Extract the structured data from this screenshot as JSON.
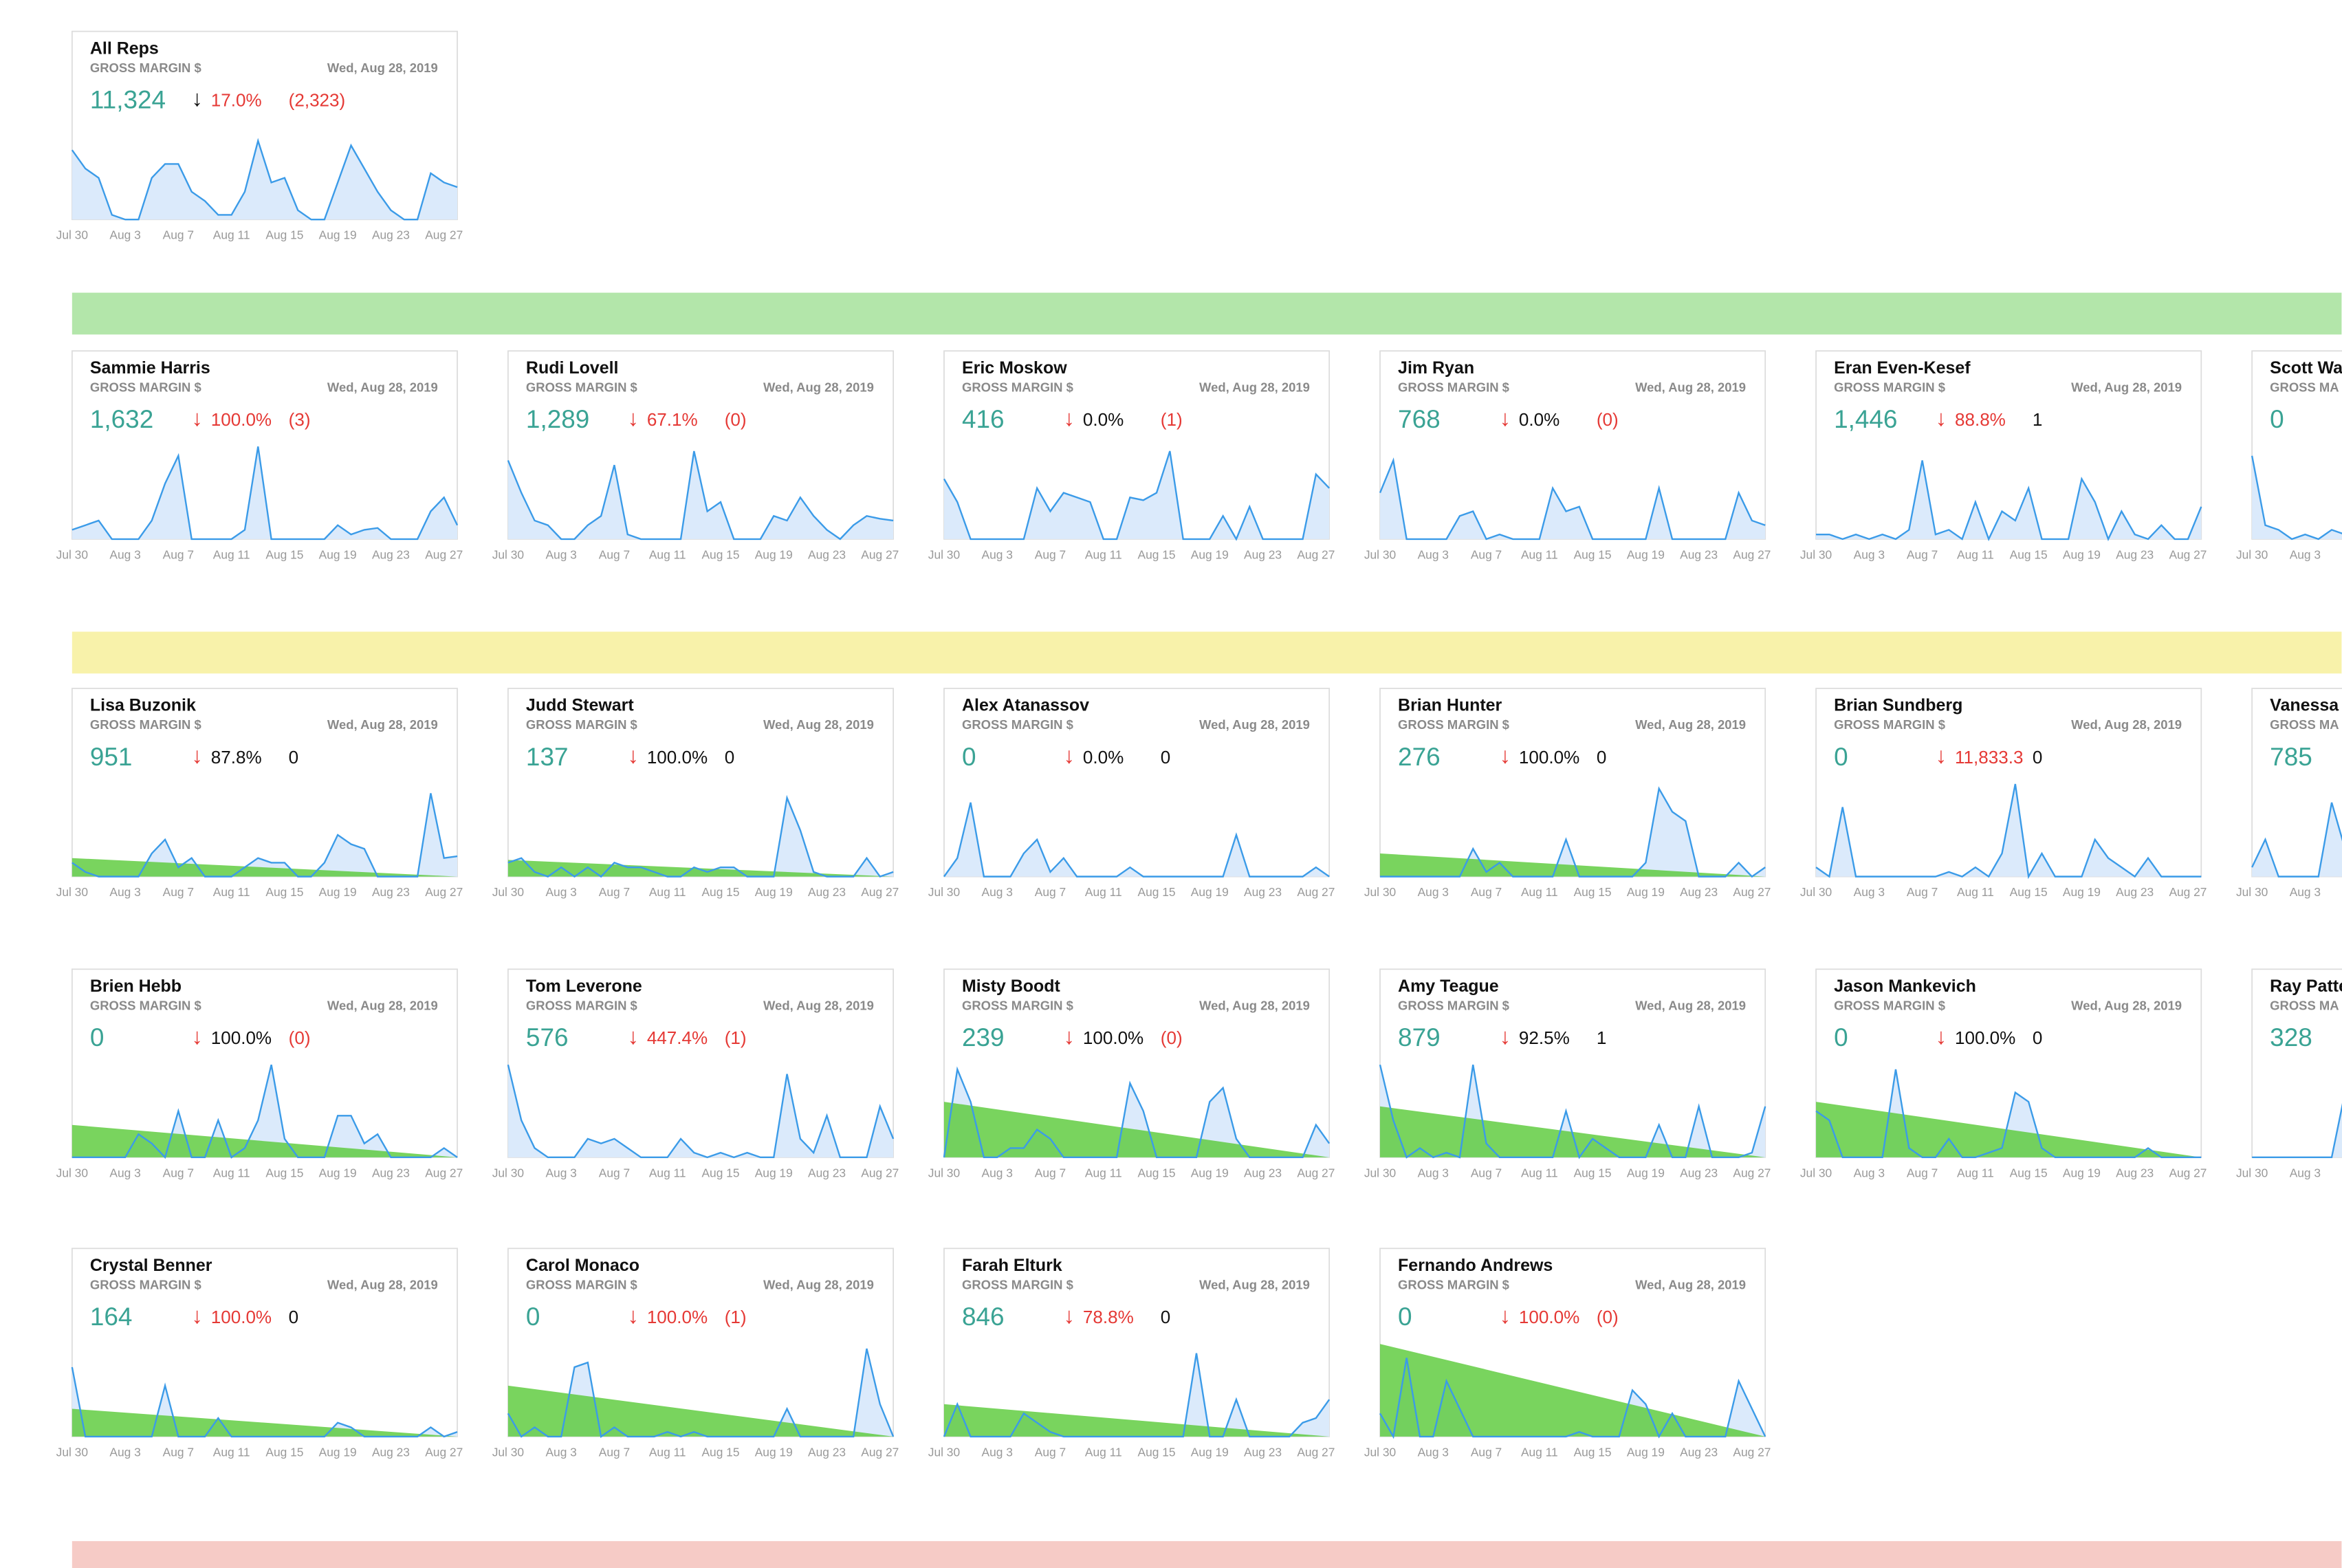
{
  "dates": [
    "Jul 30",
    "Aug 3",
    "Aug 7",
    "Aug 11",
    "Aug 15",
    "Aug 19",
    "Aug 23",
    "Aug 27"
  ],
  "ylim": [
    0,
    100
  ],
  "rows": [
    [
      {
        "name": "All Reps",
        "metric": "GROSS MARGIN $",
        "date": "Wed, Aug 28, 2019",
        "value": "11,324",
        "arrow": "↓",
        "arrow_color": "#111111",
        "pct": "17.0%",
        "pct_color": "#e53935",
        "delta": "(2,323)",
        "delta_color": "#e53935",
        "series": [
          75,
          55,
          45,
          5,
          0,
          0,
          45,
          60,
          60,
          30,
          20,
          5,
          5,
          30,
          85,
          40,
          45,
          10,
          0,
          0,
          40,
          80,
          55,
          30,
          10,
          0,
          0,
          50,
          40,
          35
        ]
      }
    ],
    [
      {
        "name": "Sammie Harris",
        "metric": "GROSS MARGIN $",
        "date": "Wed, Aug 28, 2019",
        "value": "1,632",
        "arrow": "↓",
        "pct": "100.0%",
        "pct_color": "#e53935",
        "delta": "(3)",
        "delta_color": "#e53935",
        "series": [
          10,
          15,
          20,
          0,
          0,
          0,
          20,
          60,
          90,
          0,
          0,
          0,
          0,
          10,
          100,
          0,
          0,
          0,
          0,
          0,
          15,
          5,
          10,
          12,
          0,
          0,
          0,
          30,
          45,
          15
        ]
      },
      {
        "name": "Rudi Lovell",
        "metric": "GROSS MARGIN $",
        "date": "Wed, Aug 28, 2019",
        "value": "1,289",
        "arrow": "↓",
        "pct": "67.1%",
        "pct_color": "#e53935",
        "delta": "(0)",
        "delta_color": "#e53935",
        "series": [
          85,
          50,
          20,
          15,
          0,
          0,
          15,
          25,
          80,
          5,
          0,
          0,
          0,
          0,
          95,
          30,
          40,
          0,
          0,
          0,
          25,
          20,
          45,
          25,
          10,
          0,
          15,
          25,
          22,
          20
        ]
      },
      {
        "name": "Eric Moskow",
        "metric": "GROSS MARGIN $",
        "date": "Wed, Aug 28, 2019",
        "value": "416",
        "arrow": "↓",
        "pct": "0.0%",
        "pct_color": "#111111",
        "delta": "(1)",
        "delta_color": "#e53935",
        "series": [
          65,
          40,
          0,
          0,
          0,
          0,
          0,
          55,
          30,
          50,
          45,
          40,
          0,
          0,
          45,
          42,
          50,
          95,
          0,
          0,
          0,
          25,
          0,
          35,
          0,
          0,
          0,
          0,
          70,
          55
        ]
      },
      {
        "name": "Jim Ryan",
        "metric": "GROSS MARGIN $",
        "date": "Wed, Aug 28, 2019",
        "value": "768",
        "arrow": "↓",
        "pct": "0.0%",
        "pct_color": "#111111",
        "delta": "(0)",
        "delta_color": "#e53935",
        "series": [
          50,
          85,
          0,
          0,
          0,
          0,
          25,
          30,
          0,
          5,
          0,
          0,
          0,
          55,
          30,
          35,
          0,
          0,
          0,
          0,
          0,
          55,
          0,
          0,
          0,
          0,
          0,
          50,
          20,
          15
        ]
      },
      {
        "name": "Eran Even-Kesef",
        "metric": "GROSS MARGIN $",
        "date": "Wed, Aug 28, 2019",
        "value": "1,446",
        "arrow": "↓",
        "pct": "88.8%",
        "pct_color": "#e53935",
        "delta": "1",
        "delta_color": "#111111",
        "series": [
          5,
          5,
          0,
          5,
          0,
          5,
          0,
          10,
          85,
          5,
          10,
          0,
          40,
          0,
          30,
          20,
          55,
          0,
          0,
          0,
          65,
          40,
          0,
          30,
          5,
          0,
          15,
          0,
          0,
          35
        ]
      },
      {
        "name": "Scott Wa",
        "metric": "GROSS MA",
        "value": "0",
        "series": [
          90,
          15,
          10,
          0,
          5,
          0,
          10,
          5
        ]
      }
    ],
    [
      {
        "name": "Lisa Buzonik",
        "metric": "GROSS MARGIN $",
        "date": "Wed, Aug 28, 2019",
        "value": "951",
        "arrow": "↓",
        "pct": "87.8%",
        "pct_color": "#111111",
        "delta": "0",
        "delta_color": "#111111",
        "series": [
          15,
          5,
          0,
          0,
          0,
          0,
          25,
          40,
          10,
          20,
          0,
          0,
          0,
          10,
          20,
          15,
          15,
          0,
          0,
          15,
          45,
          35,
          30,
          0,
          0,
          0,
          0,
          90,
          20,
          22
        ],
        "trend": [
          20,
          0
        ]
      },
      {
        "name": "Judd Stewart",
        "metric": "GROSS MARGIN $",
        "date": "Wed, Aug 28, 2019",
        "value": "137",
        "arrow": "↓",
        "pct": "100.0%",
        "pct_color": "#111111",
        "delta": "0",
        "delta_color": "#111111",
        "series": [
          15,
          20,
          5,
          0,
          10,
          0,
          10,
          0,
          15,
          10,
          10,
          5,
          0,
          0,
          10,
          5,
          10,
          10,
          0,
          0,
          0,
          85,
          50,
          5,
          0,
          0,
          0,
          20,
          0,
          5
        ],
        "trend": [
          18,
          0
        ]
      },
      {
        "name": "Alex Atanassov",
        "metric": "GROSS MARGIN $",
        "date": "Wed, Aug 28, 2019",
        "value": "0",
        "arrow": "↓",
        "pct": "0.0%",
        "pct_color": "#111111",
        "delta": "0",
        "delta_color": "#111111",
        "series": [
          0,
          20,
          80,
          0,
          0,
          0,
          25,
          40,
          5,
          20,
          0,
          0,
          0,
          0,
          10,
          0,
          0,
          0,
          0,
          0,
          0,
          0,
          45,
          0,
          0,
          0,
          0,
          0,
          10,
          0
        ]
      },
      {
        "name": "Brian Hunter",
        "metric": "GROSS MARGIN $",
        "date": "Wed, Aug 28, 2019",
        "value": "276",
        "arrow": "↓",
        "pct": "100.0%",
        "pct_color": "#111111",
        "delta": "0",
        "delta_color": "#111111",
        "series": [
          0,
          0,
          0,
          0,
          0,
          0,
          0,
          30,
          5,
          15,
          0,
          0,
          0,
          0,
          40,
          0,
          0,
          0,
          0,
          0,
          15,
          95,
          70,
          60,
          0,
          0,
          0,
          15,
          0,
          10
        ],
        "trend": [
          25,
          0
        ]
      },
      {
        "name": "Brian Sundberg",
        "metric": "GROSS MARGIN $",
        "date": "Wed, Aug 28, 2019",
        "value": "0",
        "arrow": "↓",
        "pct": "11,833.3",
        "pct_color": "#e53935",
        "delta": "0",
        "delta_color": "#111111",
        "series": [
          10,
          0,
          75,
          0,
          0,
          0,
          0,
          0,
          0,
          0,
          5,
          0,
          10,
          0,
          25,
          100,
          0,
          25,
          0,
          0,
          0,
          40,
          20,
          10,
          0,
          20,
          0,
          0,
          0,
          0
        ]
      },
      {
        "name": "Vanessa",
        "metric": "GROSS MA",
        "value": "785",
        "series": [
          10,
          40,
          0,
          0,
          0,
          0,
          80,
          30
        ]
      }
    ],
    [
      {
        "name": "Brien Hebb",
        "metric": "GROSS MARGIN $",
        "date": "Wed, Aug 28, 2019",
        "value": "0",
        "arrow": "↓",
        "pct": "100.0%",
        "pct_color": "#111111",
        "delta": "(0)",
        "delta_color": "#e53935",
        "series": [
          0,
          0,
          0,
          0,
          0,
          25,
          15,
          0,
          50,
          0,
          0,
          40,
          0,
          10,
          40,
          100,
          20,
          0,
          0,
          0,
          45,
          45,
          15,
          25,
          0,
          0,
          0,
          0,
          10,
          0
        ],
        "trend": [
          35,
          0
        ]
      },
      {
        "name": "Tom Leverone",
        "metric": "GROSS MARGIN $",
        "date": "Wed, Aug 28, 2019",
        "value": "576",
        "arrow": "↓",
        "pct": "447.4%",
        "pct_color": "#e53935",
        "delta": "(1)",
        "delta_color": "#e53935",
        "series": [
          100,
          40,
          10,
          0,
          0,
          0,
          20,
          15,
          20,
          10,
          0,
          0,
          0,
          20,
          5,
          0,
          5,
          0,
          5,
          0,
          0,
          90,
          20,
          5,
          45,
          0,
          0,
          0,
          55,
          20
        ]
      },
      {
        "name": "Misty Boodt",
        "metric": "GROSS MARGIN $",
        "date": "Wed, Aug 28, 2019",
        "value": "239",
        "arrow": "↓",
        "pct": "100.0%",
        "pct_color": "#111111",
        "delta": "(0)",
        "delta_color": "#e53935",
        "series": [
          0,
          95,
          60,
          0,
          0,
          10,
          10,
          30,
          20,
          0,
          0,
          0,
          0,
          0,
          80,
          50,
          0,
          0,
          0,
          0,
          60,
          75,
          20,
          0,
          0,
          0,
          0,
          0,
          35,
          15
        ],
        "trend": [
          60,
          0
        ]
      },
      {
        "name": "Amy Teague",
        "metric": "GROSS MARGIN $",
        "date": "Wed, Aug 28, 2019",
        "value": "879",
        "arrow": "↓",
        "pct": "92.5%",
        "pct_color": "#111111",
        "delta": "1",
        "delta_color": "#111111",
        "series": [
          100,
          40,
          0,
          10,
          0,
          5,
          0,
          100,
          15,
          0,
          0,
          0,
          0,
          0,
          50,
          0,
          20,
          10,
          0,
          0,
          0,
          35,
          0,
          0,
          55,
          0,
          0,
          0,
          5,
          55
        ],
        "trend": [
          55,
          0
        ]
      },
      {
        "name": "Jason Mankevich",
        "metric": "GROSS MARGIN $",
        "date": "Wed, Aug 28, 2019",
        "value": "0",
        "arrow": "↓",
        "pct": "100.0%",
        "pct_color": "#111111",
        "delta": "0",
        "delta_color": "#111111",
        "series": [
          50,
          40,
          0,
          0,
          0,
          0,
          95,
          10,
          0,
          0,
          20,
          0,
          0,
          5,
          10,
          70,
          60,
          10,
          0,
          0,
          0,
          0,
          0,
          0,
          0,
          10,
          0,
          0,
          0,
          0
        ],
        "trend": [
          60,
          0
        ]
      },
      {
        "name": "Ray Patte",
        "metric": "GROSS MA",
        "value": "328",
        "series": [
          0,
          0,
          0,
          0,
          0,
          0,
          0,
          70
        ]
      }
    ],
    [
      {
        "name": "Crystal Benner",
        "metric": "GROSS MARGIN $",
        "date": "Wed, Aug 28, 2019",
        "value": "164",
        "arrow": "↓",
        "pct": "100.0%",
        "pct_color": "#e53935",
        "delta": "0",
        "delta_color": "#111111",
        "series": [
          75,
          0,
          0,
          0,
          0,
          0,
          0,
          55,
          0,
          0,
          0,
          20,
          0,
          0,
          0,
          0,
          0,
          0,
          0,
          0,
          15,
          10,
          0,
          0,
          0,
          0,
          0,
          10,
          0,
          5
        ],
        "trend": [
          30,
          0
        ]
      },
      {
        "name": "Carol Monaco",
        "metric": "GROSS MARGIN $",
        "date": "Wed, Aug 28, 2019",
        "value": "0",
        "arrow": "↓",
        "pct": "100.0%",
        "pct_color": "#e53935",
        "delta": "(1)",
        "delta_color": "#e53935",
        "series": [
          25,
          0,
          10,
          0,
          0,
          75,
          80,
          0,
          10,
          0,
          0,
          0,
          5,
          0,
          5,
          0,
          0,
          0,
          0,
          0,
          0,
          30,
          0,
          0,
          0,
          0,
          0,
          95,
          35,
          0
        ],
        "trend": [
          55,
          0
        ]
      },
      {
        "name": "Farah Elturk",
        "metric": "GROSS MARGIN $",
        "date": "Wed, Aug 28, 2019",
        "value": "846",
        "arrow": "↓",
        "pct": "78.8%",
        "pct_color": "#e53935",
        "delta": "0",
        "delta_color": "#111111",
        "series": [
          0,
          35,
          0,
          0,
          0,
          0,
          25,
          15,
          5,
          0,
          0,
          0,
          0,
          0,
          0,
          0,
          0,
          0,
          0,
          90,
          0,
          0,
          40,
          0,
          0,
          0,
          0,
          15,
          20,
          40
        ],
        "trend": [
          35,
          0
        ]
      },
      {
        "name": "Fernando Andrews",
        "metric": "GROSS MARGIN $",
        "date": "Wed, Aug 28, 2019",
        "value": "0",
        "arrow": "↓",
        "pct": "100.0%",
        "pct_color": "#e53935",
        "delta": "(0)",
        "delta_color": "#e53935",
        "series": [
          25,
          0,
          85,
          0,
          0,
          60,
          30,
          0,
          0,
          0,
          0,
          0,
          0,
          0,
          0,
          5,
          0,
          0,
          0,
          50,
          35,
          0,
          25,
          0,
          0,
          0,
          0,
          60,
          30,
          0
        ],
        "trend": [
          100,
          0
        ]
      }
    ]
  ]
}
